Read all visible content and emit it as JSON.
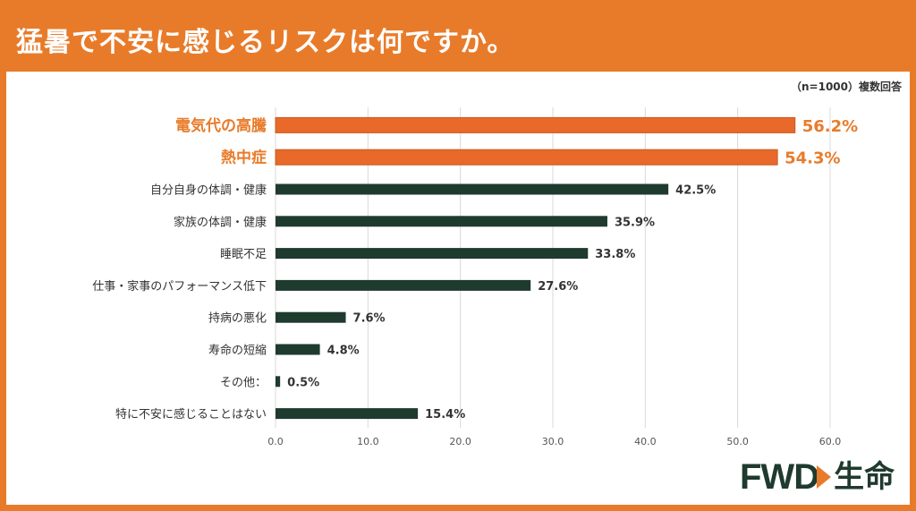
{
  "header": {
    "title": "猛暑で不安に感じるリスクは何ですか。",
    "note": "（n=1000）複数回答"
  },
  "logo": {
    "fwd": "FWD",
    "ja": "生命"
  },
  "colors": {
    "accent": "#e87b2a",
    "highlight": "#e8692a",
    "bar": "#1f3a2e",
    "grid": "#d9d9d9"
  },
  "chart_data": {
    "type": "bar",
    "orientation": "horizontal",
    "categories": [
      "電気代の高騰",
      "熱中症",
      "自分自身の体調・健康",
      "家族の体調・健康",
      "睡眠不足",
      "仕事・家事のパフォーマンス低下",
      "持病の悪化",
      "寿命の短縮",
      "その他：",
      "特に不安に感じることはない"
    ],
    "values": [
      56.2,
      54.3,
      42.5,
      35.9,
      33.8,
      27.6,
      7.6,
      4.8,
      0.5,
      15.4
    ],
    "value_labels": [
      "56.2%",
      "54.3%",
      "42.5%",
      "35.9%",
      "33.8%",
      "27.6%",
      "7.6%",
      "4.8%",
      "0.5%",
      "15.4%"
    ],
    "highlighted": [
      true,
      true,
      false,
      false,
      false,
      false,
      false,
      false,
      false,
      false
    ],
    "xlim": [
      0,
      60
    ],
    "xticks": [
      "0.0",
      "10.0",
      "20.0",
      "30.0",
      "40.0",
      "50.0",
      "60.0"
    ],
    "grid": true
  }
}
